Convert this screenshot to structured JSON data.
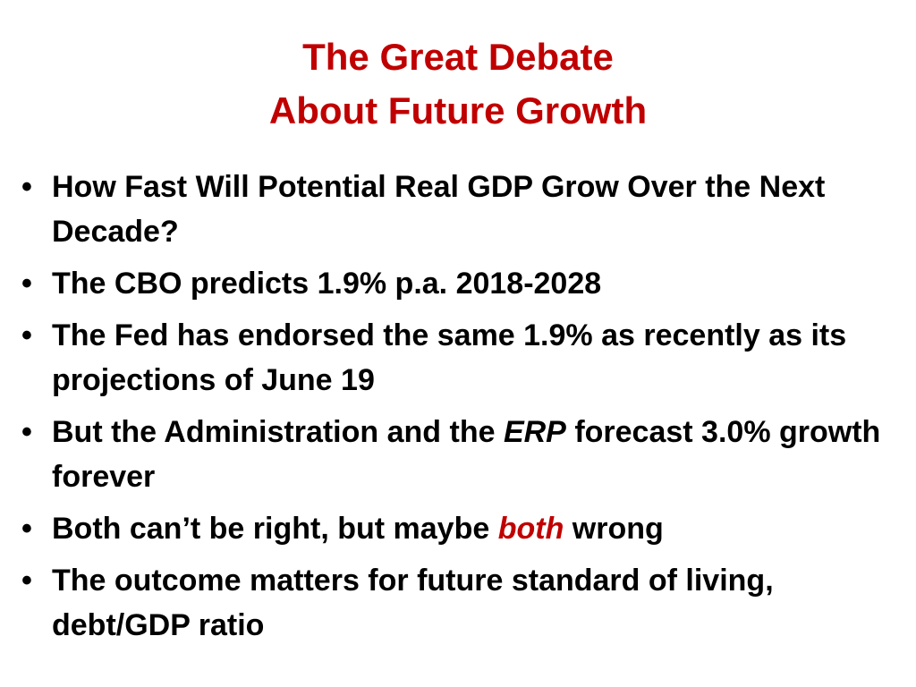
{
  "slide": {
    "title_line1": "The Great Debate",
    "title_line2": "About Future Growth",
    "bullet_symbol": "•",
    "bullets": [
      {
        "text": "How Fast Will Potential Real GDP Grow Over the Next Decade?"
      },
      {
        "text": "The CBO predicts 1.9% p.a. 2018-2028"
      },
      {
        "text": "The Fed has endorsed the same 1.9% as recently as its projections of June 19"
      },
      {
        "before": "But the Administration and the ",
        "emph": "ERP",
        "after": " forecast 3.0% growth forever"
      },
      {
        "before": "Both can’t be right, but maybe ",
        "emph": "both",
        "after": " wrong"
      },
      {
        "text": "The outcome matters for future standard of living, debt/GDP ratio"
      }
    ]
  },
  "colors": {
    "title": "#c00000",
    "text": "#000000",
    "emphasis": "#c00000",
    "background": "#ffffff"
  }
}
